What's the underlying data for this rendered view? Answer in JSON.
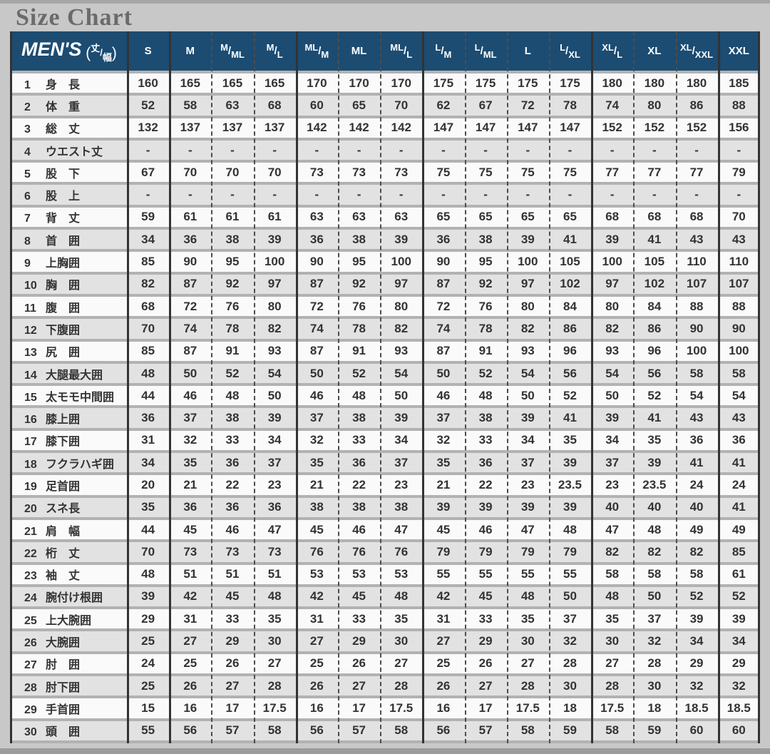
{
  "page": {
    "title": "Size Chart",
    "colors": {
      "page_bg": "#c8c8c8",
      "title_text": "#6b6b6b",
      "header_bg": "#1c4c72",
      "header_text": "#ffffff",
      "row_white": "#fafafa",
      "row_gray": "#e2e2e2",
      "separator_gray": "#b2b2b2",
      "grid_dark": "#333333",
      "value_text": "#333333"
    }
  },
  "chart_data": {
    "type": "table",
    "title": "Size Chart",
    "header": {
      "group_label": "MEN'S",
      "group_label_note": {
        "open": "(",
        "top": "丈",
        "slash": "/",
        "bottom": "幅",
        "close": ")"
      },
      "columns": [
        {
          "label": "S",
          "group_start": true
        },
        {
          "label": "M",
          "group_start": true
        },
        {
          "label": "M/ML",
          "parts": [
            "M",
            "ML"
          ]
        },
        {
          "label": "M/L",
          "parts": [
            "M",
            "L"
          ]
        },
        {
          "label": "ML/M",
          "parts": [
            "ML",
            "M"
          ],
          "group_start": true
        },
        {
          "label": "ML"
        },
        {
          "label": "ML/L",
          "parts": [
            "ML",
            "L"
          ]
        },
        {
          "label": "L/M",
          "parts": [
            "L",
            "M"
          ],
          "group_start": true
        },
        {
          "label": "L/ML",
          "parts": [
            "L",
            "ML"
          ]
        },
        {
          "label": "L"
        },
        {
          "label": "L/XL",
          "parts": [
            "L",
            "XL"
          ]
        },
        {
          "label": "XL/L",
          "parts": [
            "XL",
            "L"
          ],
          "group_start": true
        },
        {
          "label": "XL"
        },
        {
          "label": "XL/XXL",
          "parts": [
            "XL",
            "XXL"
          ]
        },
        {
          "label": "XXL",
          "group_start": true
        }
      ]
    },
    "rows": [
      {
        "num": "1",
        "label": "身　長",
        "values": [
          "160",
          "165",
          "165",
          "165",
          "170",
          "170",
          "170",
          "175",
          "175",
          "175",
          "175",
          "180",
          "180",
          "180",
          "185"
        ]
      },
      {
        "num": "2",
        "label": "体　重",
        "values": [
          "52",
          "58",
          "63",
          "68",
          "60",
          "65",
          "70",
          "62",
          "67",
          "72",
          "78",
          "74",
          "80",
          "86",
          "88"
        ]
      },
      {
        "num": "3",
        "label": "総　丈",
        "values": [
          "132",
          "137",
          "137",
          "137",
          "142",
          "142",
          "142",
          "147",
          "147",
          "147",
          "147",
          "152",
          "152",
          "152",
          "156"
        ]
      },
      {
        "num": "4",
        "label": "ウエスト丈",
        "values": [
          "-",
          "-",
          "-",
          "-",
          "-",
          "-",
          "-",
          "-",
          "-",
          "-",
          "-",
          "-",
          "-",
          "-",
          "-"
        ]
      },
      {
        "num": "5",
        "label": "股　下",
        "values": [
          "67",
          "70",
          "70",
          "70",
          "73",
          "73",
          "73",
          "75",
          "75",
          "75",
          "75",
          "77",
          "77",
          "77",
          "79"
        ]
      },
      {
        "num": "6",
        "label": "股　上",
        "values": [
          "-",
          "-",
          "-",
          "-",
          "-",
          "-",
          "-",
          "-",
          "-",
          "-",
          "-",
          "-",
          "-",
          "-",
          "-"
        ]
      },
      {
        "num": "7",
        "label": "背　丈",
        "values": [
          "59",
          "61",
          "61",
          "61",
          "63",
          "63",
          "63",
          "65",
          "65",
          "65",
          "65",
          "68",
          "68",
          "68",
          "70"
        ]
      },
      {
        "num": "8",
        "label": "首　囲",
        "values": [
          "34",
          "36",
          "38",
          "39",
          "36",
          "38",
          "39",
          "36",
          "38",
          "39",
          "41",
          "39",
          "41",
          "43",
          "43"
        ]
      },
      {
        "num": "9",
        "label": "上胸囲",
        "values": [
          "85",
          "90",
          "95",
          "100",
          "90",
          "95",
          "100",
          "90",
          "95",
          "100",
          "105",
          "100",
          "105",
          "110",
          "110"
        ]
      },
      {
        "num": "10",
        "label": "胸　囲",
        "values": [
          "82",
          "87",
          "92",
          "97",
          "87",
          "92",
          "97",
          "87",
          "92",
          "97",
          "102",
          "97",
          "102",
          "107",
          "107"
        ]
      },
      {
        "num": "11",
        "label": "腹　囲",
        "values": [
          "68",
          "72",
          "76",
          "80",
          "72",
          "76",
          "80",
          "72",
          "76",
          "80",
          "84",
          "80",
          "84",
          "88",
          "88"
        ]
      },
      {
        "num": "12",
        "label": "下腹囲",
        "values": [
          "70",
          "74",
          "78",
          "82",
          "74",
          "78",
          "82",
          "74",
          "78",
          "82",
          "86",
          "82",
          "86",
          "90",
          "90"
        ]
      },
      {
        "num": "13",
        "label": "尻　囲",
        "values": [
          "85",
          "87",
          "91",
          "93",
          "87",
          "91",
          "93",
          "87",
          "91",
          "93",
          "96",
          "93",
          "96",
          "100",
          "100"
        ]
      },
      {
        "num": "14",
        "label": "大腿最大囲",
        "values": [
          "48",
          "50",
          "52",
          "54",
          "50",
          "52",
          "54",
          "50",
          "52",
          "54",
          "56",
          "54",
          "56",
          "58",
          "58"
        ]
      },
      {
        "num": "15",
        "label": "太モモ中間囲",
        "values": [
          "44",
          "46",
          "48",
          "50",
          "46",
          "48",
          "50",
          "46",
          "48",
          "50",
          "52",
          "50",
          "52",
          "54",
          "54"
        ]
      },
      {
        "num": "16",
        "label": "膝上囲",
        "values": [
          "36",
          "37",
          "38",
          "39",
          "37",
          "38",
          "39",
          "37",
          "38",
          "39",
          "41",
          "39",
          "41",
          "43",
          "43"
        ]
      },
      {
        "num": "17",
        "label": "膝下囲",
        "values": [
          "31",
          "32",
          "33",
          "34",
          "32",
          "33",
          "34",
          "32",
          "33",
          "34",
          "35",
          "34",
          "35",
          "36",
          "36"
        ]
      },
      {
        "num": "18",
        "label": "フクラハギ囲",
        "values": [
          "34",
          "35",
          "36",
          "37",
          "35",
          "36",
          "37",
          "35",
          "36",
          "37",
          "39",
          "37",
          "39",
          "41",
          "41"
        ]
      },
      {
        "num": "19",
        "label": "足首囲",
        "values": [
          "20",
          "21",
          "22",
          "23",
          "21",
          "22",
          "23",
          "21",
          "22",
          "23",
          "23.5",
          "23",
          "23.5",
          "24",
          "24"
        ]
      },
      {
        "num": "20",
        "label": "スネ長",
        "values": [
          "35",
          "36",
          "36",
          "36",
          "38",
          "38",
          "38",
          "39",
          "39",
          "39",
          "39",
          "40",
          "40",
          "40",
          "41"
        ]
      },
      {
        "num": "21",
        "label": "肩　幅",
        "values": [
          "44",
          "45",
          "46",
          "47",
          "45",
          "46",
          "47",
          "45",
          "46",
          "47",
          "48",
          "47",
          "48",
          "49",
          "49"
        ]
      },
      {
        "num": "22",
        "label": "桁　丈",
        "values": [
          "70",
          "73",
          "73",
          "73",
          "76",
          "76",
          "76",
          "79",
          "79",
          "79",
          "79",
          "82",
          "82",
          "82",
          "85"
        ]
      },
      {
        "num": "23",
        "label": "袖　丈",
        "values": [
          "48",
          "51",
          "51",
          "51",
          "53",
          "53",
          "53",
          "55",
          "55",
          "55",
          "55",
          "58",
          "58",
          "58",
          "61"
        ]
      },
      {
        "num": "24",
        "label": "腕付け根囲",
        "values": [
          "39",
          "42",
          "45",
          "48",
          "42",
          "45",
          "48",
          "42",
          "45",
          "48",
          "50",
          "48",
          "50",
          "52",
          "52"
        ]
      },
      {
        "num": "25",
        "label": "上大腕囲",
        "values": [
          "29",
          "31",
          "33",
          "35",
          "31",
          "33",
          "35",
          "31",
          "33",
          "35",
          "37",
          "35",
          "37",
          "39",
          "39"
        ]
      },
      {
        "num": "26",
        "label": "大腕囲",
        "values": [
          "25",
          "27",
          "29",
          "30",
          "27",
          "29",
          "30",
          "27",
          "29",
          "30",
          "32",
          "30",
          "32",
          "34",
          "34"
        ]
      },
      {
        "num": "27",
        "label": "肘　囲",
        "values": [
          "24",
          "25",
          "26",
          "27",
          "25",
          "26",
          "27",
          "25",
          "26",
          "27",
          "28",
          "27",
          "28",
          "29",
          "29"
        ]
      },
      {
        "num": "28",
        "label": "肘下囲",
        "values": [
          "25",
          "26",
          "27",
          "28",
          "26",
          "27",
          "28",
          "26",
          "27",
          "28",
          "30",
          "28",
          "30",
          "32",
          "32"
        ]
      },
      {
        "num": "29",
        "label": "手首囲",
        "values": [
          "15",
          "16",
          "17",
          "17.5",
          "16",
          "17",
          "17.5",
          "16",
          "17",
          "17.5",
          "18",
          "17.5",
          "18",
          "18.5",
          "18.5"
        ]
      },
      {
        "num": "30",
        "label": "頭　囲",
        "values": [
          "55",
          "56",
          "57",
          "58",
          "56",
          "57",
          "58",
          "56",
          "57",
          "58",
          "59",
          "58",
          "59",
          "60",
          "60"
        ]
      }
    ]
  }
}
